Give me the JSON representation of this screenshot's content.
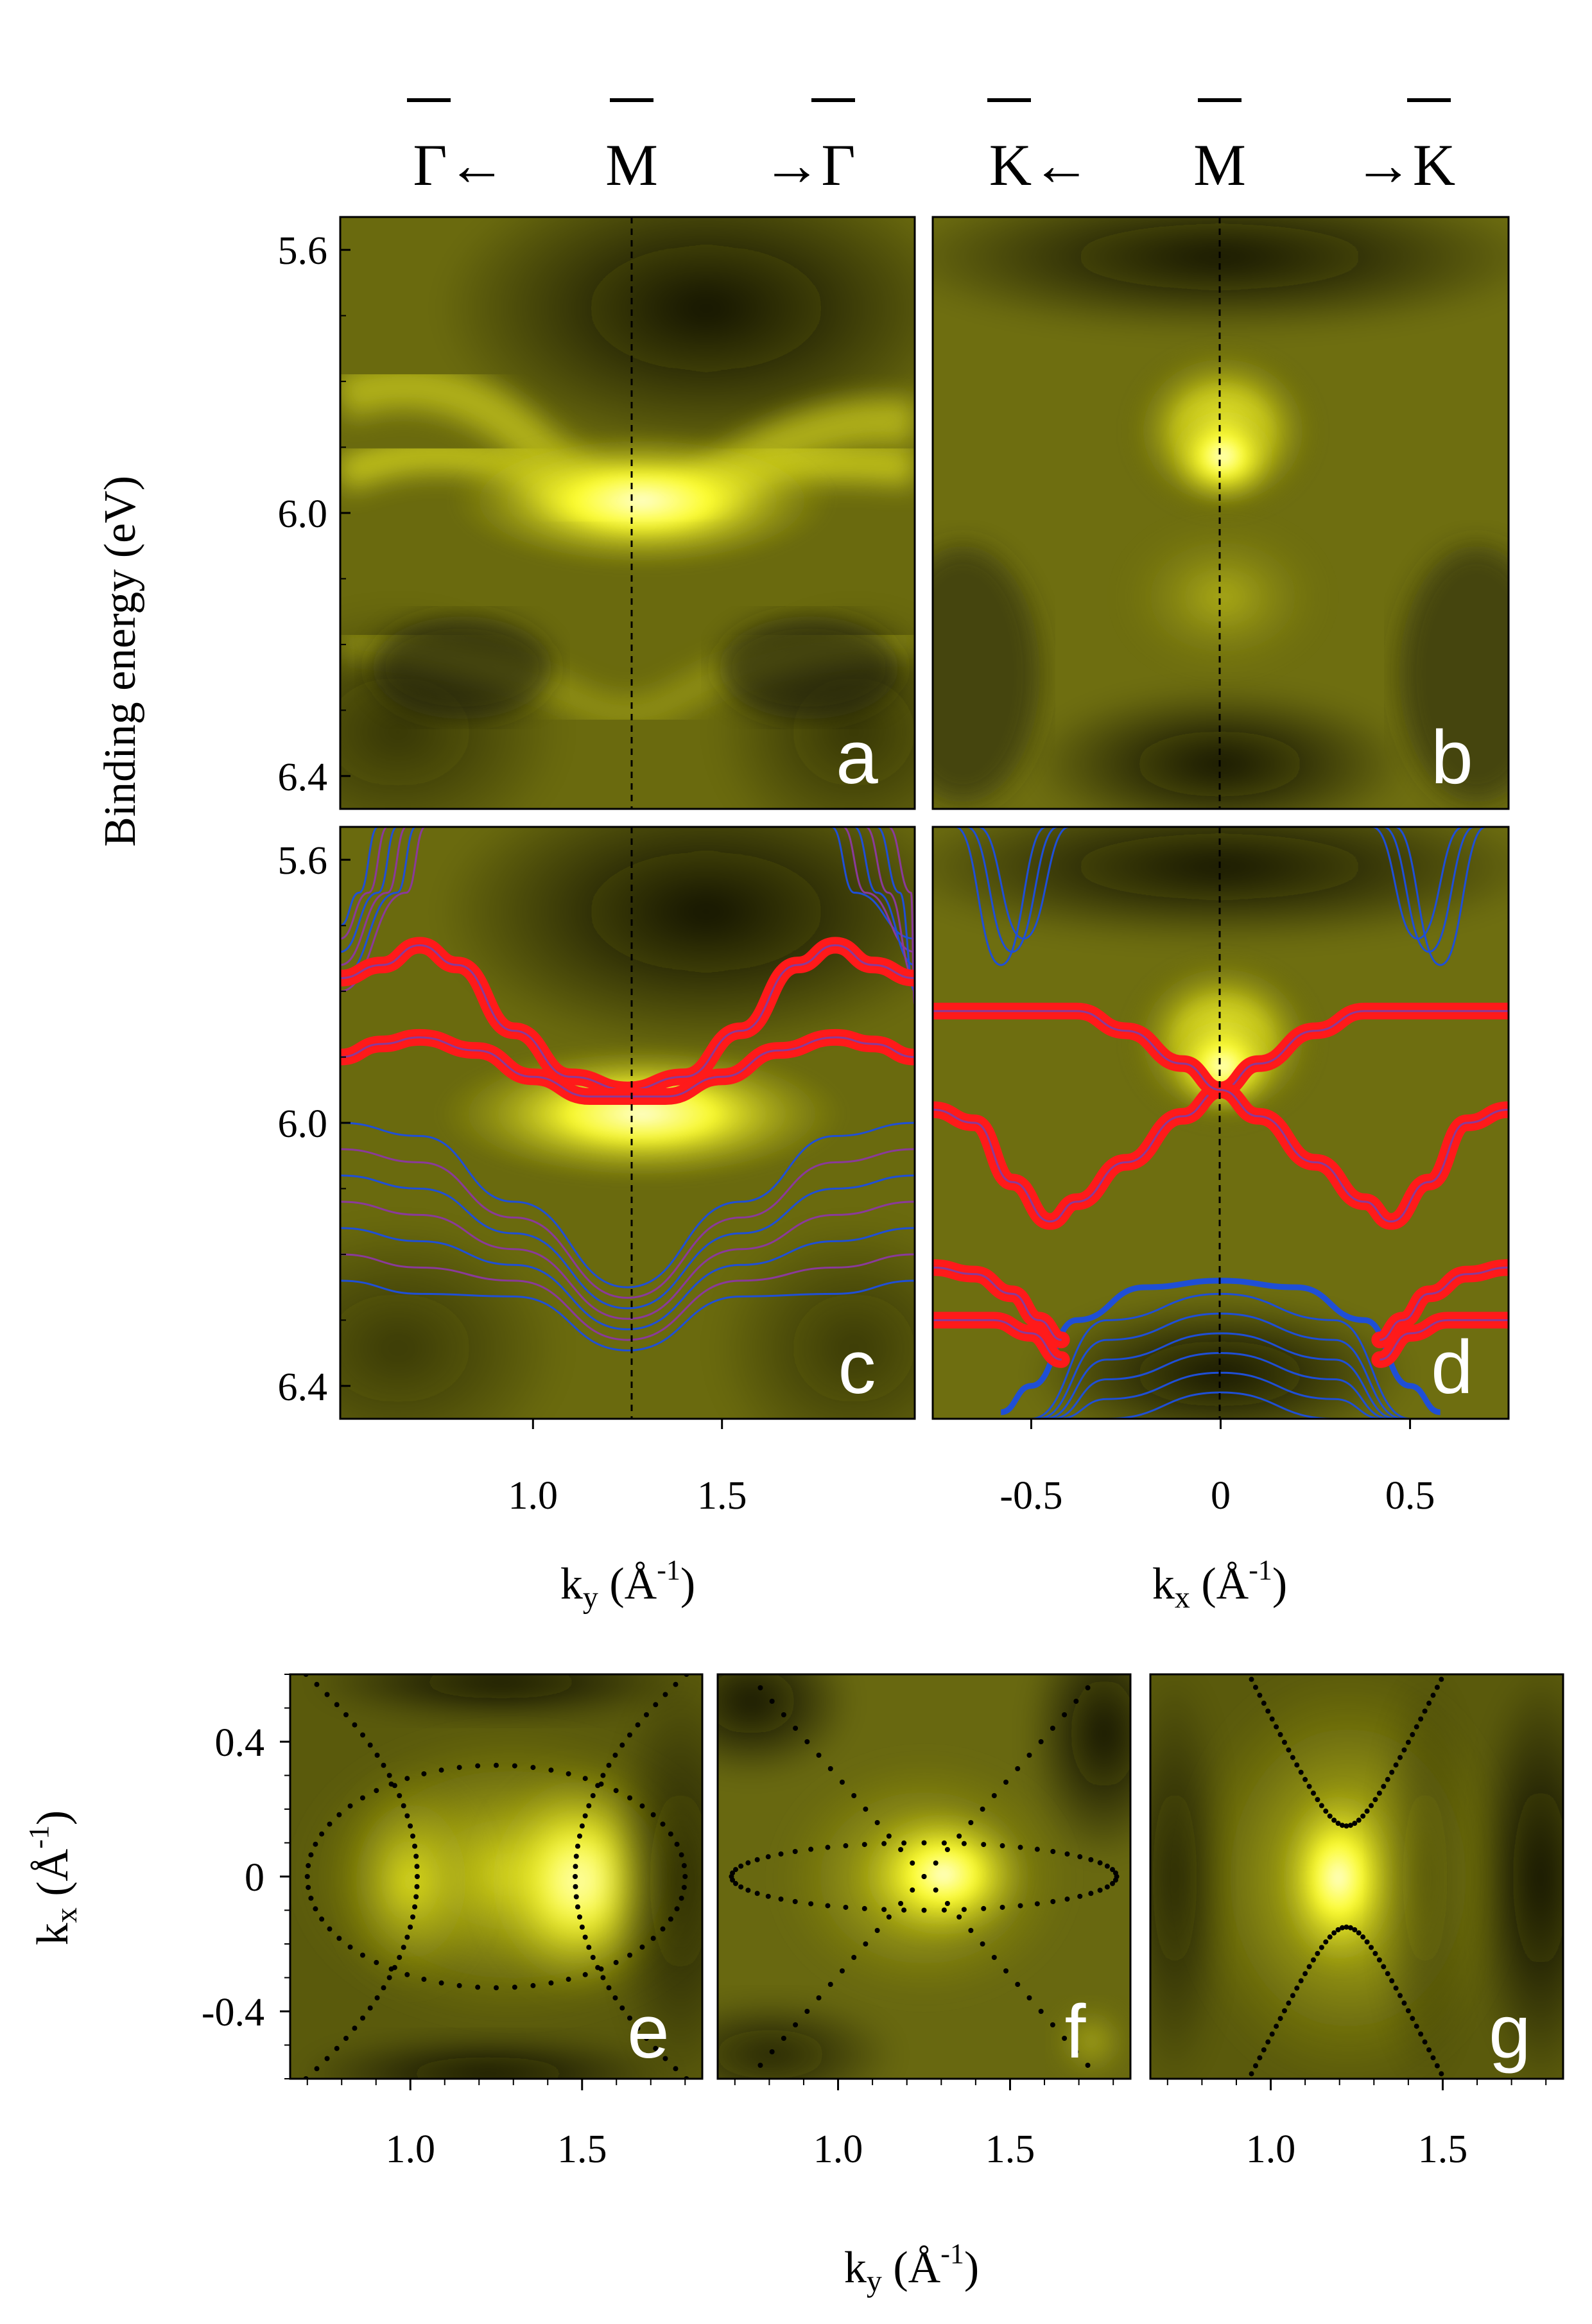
{
  "figure": {
    "y_axis_title_top": "Binding energy (eV)",
    "y_axis_title_bottom_main": "k",
    "y_axis_title_bottom_sub": "x",
    "y_axis_title_bottom_unit": " (Å",
    "y_axis_title_bottom_sup": "-1",
    "y_axis_title_bottom_close": ")",
    "x_axis_title_c_main": "k",
    "x_axis_title_c_sub": "y",
    "x_axis_title_d_main": "k",
    "x_axis_title_d_sub": "x",
    "x_axis_title_bottom_main": "k",
    "x_axis_title_bottom_sub": "y",
    "axis_unit_open": " (Å",
    "axis_unit_sup": "-1",
    "axis_unit_close": ")"
  },
  "high_symmetry": {
    "left": [
      {
        "symbol": "Γ",
        "suffix": "←",
        "prefix": ""
      },
      {
        "symbol": "M",
        "suffix": "",
        "prefix": ""
      },
      {
        "symbol": "Γ",
        "suffix": "",
        "prefix": "→"
      }
    ],
    "right": [
      {
        "symbol": "K",
        "suffix": "←",
        "prefix": ""
      },
      {
        "symbol": "M",
        "suffix": "",
        "prefix": ""
      },
      {
        "symbol": "K",
        "suffix": "",
        "prefix": "→"
      }
    ]
  },
  "colors": {
    "background": "#ffffff",
    "intensity_dark": "#14140a",
    "intensity_mid": "#6e6e0c",
    "intensity_bright": "#ffff2a",
    "intensity_peak": "#ffffc8",
    "band_red": "#ff1a1a",
    "band_blue": "#1f4fd6",
    "band_purple": "#8a3a9a",
    "dashed_line": "#000000",
    "contour_dots": "#000000",
    "panel_label": "#ffffff"
  },
  "chart_data": [
    {
      "panel": "a",
      "type": "heatmap",
      "label": "a",
      "description_axis": "ky",
      "xlim": [
        0.49,
        2.01
      ],
      "ylim": [
        5.55,
        6.45
      ],
      "y_ticks": [
        "5.6",
        "6.0",
        "6.4"
      ],
      "y_tick_values": [
        5.6,
        6.0,
        6.4
      ],
      "x_ticks": [],
      "dashed_vertical_at": 1.25,
      "bands_bright": [
        {
          "name": "upper",
          "points": [
            [
              0.5,
              5.82
            ],
            [
              0.75,
              5.8
            ],
            [
              1.0,
              5.92
            ],
            [
              1.25,
              5.99
            ],
            [
              1.5,
              5.92
            ],
            [
              1.75,
              5.8
            ],
            [
              2.0,
              5.82
            ]
          ]
        },
        {
          "name": "lower",
          "points": [
            [
              0.5,
              5.9
            ],
            [
              0.75,
              5.88
            ],
            [
              1.0,
              5.95
            ],
            [
              1.25,
              5.99
            ],
            [
              1.5,
              5.95
            ],
            [
              1.75,
              5.88
            ],
            [
              2.0,
              5.9
            ]
          ]
        },
        {
          "name": "deep",
          "points": [
            [
              0.5,
              6.1
            ],
            [
              0.8,
              6.15
            ],
            [
              1.1,
              6.28
            ],
            [
              1.25,
              6.3
            ],
            [
              1.4,
              6.28
            ],
            [
              1.7,
              6.15
            ],
            [
              2.0,
              6.1
            ]
          ]
        }
      ]
    },
    {
      "panel": "b",
      "type": "heatmap",
      "label": "b",
      "description_axis": "kx",
      "xlim": [
        -0.76,
        0.76
      ],
      "ylim": [
        5.55,
        6.45
      ],
      "y_ticks": [],
      "x_ticks": [],
      "dashed_vertical_at": 0,
      "bright_spot": {
        "kx": 0,
        "E": 5.92
      }
    },
    {
      "panel": "c",
      "type": "line",
      "label": "c",
      "xlim": [
        0.49,
        2.01
      ],
      "ylim": [
        5.55,
        6.45
      ],
      "x_ticks": [
        "1.0",
        "1.5"
      ],
      "x_tick_values": [
        1.0,
        1.5
      ],
      "y_ticks": [
        "5.6",
        "6.0",
        "6.4"
      ],
      "y_tick_values": [
        5.6,
        6.0,
        6.4
      ],
      "xlabel": "ky (Å-1)",
      "dashed_vertical_at": 1.25,
      "series": [
        {
          "name": "red-upper",
          "color": "red",
          "points": [
            [
              0.49,
              5.78
            ],
            [
              0.6,
              5.76
            ],
            [
              0.7,
              5.73
            ],
            [
              0.8,
              5.76
            ],
            [
              0.95,
              5.86
            ],
            [
              1.1,
              5.93
            ],
            [
              1.25,
              5.95
            ],
            [
              1.4,
              5.93
            ],
            [
              1.55,
              5.86
            ],
            [
              1.7,
              5.76
            ],
            [
              1.8,
              5.73
            ],
            [
              1.9,
              5.76
            ],
            [
              2.01,
              5.78
            ]
          ]
        },
        {
          "name": "red-lower",
          "color": "red",
          "points": [
            [
              0.49,
              5.9
            ],
            [
              0.6,
              5.88
            ],
            [
              0.7,
              5.87
            ],
            [
              0.85,
              5.89
            ],
            [
              1.0,
              5.93
            ],
            [
              1.15,
              5.96
            ],
            [
              1.25,
              5.96
            ],
            [
              1.35,
              5.96
            ],
            [
              1.5,
              5.93
            ],
            [
              1.65,
              5.89
            ],
            [
              1.8,
              5.87
            ],
            [
              1.9,
              5.88
            ],
            [
              2.01,
              5.9
            ]
          ]
        }
      ]
    },
    {
      "panel": "d",
      "type": "line",
      "label": "d",
      "xlim": [
        -0.76,
        0.76
      ],
      "ylim": [
        5.55,
        6.45
      ],
      "x_ticks": [
        "-0.5",
        "0",
        "0.5"
      ],
      "x_tick_values": [
        -0.5,
        0,
        0.5
      ],
      "y_ticks": [],
      "xlabel": "kx (Å-1)",
      "dashed_vertical_at": 0,
      "series": [
        {
          "name": "red-cross-1",
          "color": "red",
          "points": [
            [
              -0.76,
              5.98
            ],
            [
              -0.65,
              6.0
            ],
            [
              -0.55,
              6.09
            ],
            [
              -0.45,
              6.15
            ],
            [
              -0.38,
              6.12
            ],
            [
              -0.25,
              6.06
            ],
            [
              -0.1,
              5.99
            ],
            [
              0,
              5.95
            ],
            [
              0.1,
              5.91
            ],
            [
              0.25,
              5.86
            ],
            [
              0.38,
              5.83
            ],
            [
              0.5,
              5.83
            ],
            [
              0.65,
              5.83
            ],
            [
              0.76,
              5.83
            ]
          ]
        },
        {
          "name": "red-cross-2",
          "color": "red",
          "points": [
            [
              -0.76,
              5.83
            ],
            [
              -0.65,
              5.83
            ],
            [
              -0.5,
              5.83
            ],
            [
              -0.38,
              5.83
            ],
            [
              -0.25,
              5.86
            ],
            [
              -0.1,
              5.91
            ],
            [
              0,
              5.95
            ],
            [
              0.1,
              5.99
            ],
            [
              0.25,
              6.06
            ],
            [
              0.38,
              6.12
            ],
            [
              0.45,
              6.15
            ],
            [
              0.55,
              6.09
            ],
            [
              0.65,
              6.0
            ],
            [
              0.76,
              5.98
            ]
          ]
        },
        {
          "name": "red-lower-left",
          "color": "red",
          "points": [
            [
              -0.76,
              6.22
            ],
            [
              -0.65,
              6.23
            ],
            [
              -0.55,
              6.26
            ],
            [
              -0.48,
              6.3
            ],
            [
              -0.42,
              6.33
            ]
          ]
        },
        {
          "name": "red-lower-right",
          "color": "red",
          "points": [
            [
              0.42,
              6.33
            ],
            [
              0.48,
              6.3
            ],
            [
              0.55,
              6.26
            ],
            [
              0.65,
              6.23
            ],
            [
              0.76,
              6.22
            ]
          ]
        },
        {
          "name": "red-bottom-left",
          "color": "red",
          "points": [
            [
              -0.76,
              6.3
            ],
            [
              -0.6,
              6.3
            ],
            [
              -0.5,
              6.32
            ],
            [
              -0.42,
              6.36
            ]
          ]
        },
        {
          "name": "red-bottom-right",
          "color": "red",
          "points": [
            [
              0.42,
              6.36
            ],
            [
              0.5,
              6.32
            ],
            [
              0.6,
              6.3
            ],
            [
              0.76,
              6.3
            ]
          ]
        },
        {
          "name": "blue-dome",
          "color": "blue",
          "points": [
            [
              -0.58,
              6.44
            ],
            [
              -0.5,
              6.4
            ],
            [
              -0.38,
              6.3
            ],
            [
              -0.2,
              6.25
            ],
            [
              0,
              6.24
            ],
            [
              0.2,
              6.25
            ],
            [
              0.38,
              6.3
            ],
            [
              0.5,
              6.4
            ],
            [
              0.58,
              6.44
            ]
          ]
        }
      ]
    },
    {
      "panel": "e",
      "type": "heatmap",
      "label": "e",
      "xlim": [
        0.65,
        1.85
      ],
      "ylim": [
        -0.6,
        0.6
      ],
      "x_ticks": [
        "1.0",
        "1.5"
      ],
      "x_tick_values": [
        1.0,
        1.5
      ],
      "y_ticks": [
        "0.4",
        "0",
        "-0.4"
      ],
      "y_tick_values": [
        0.4,
        0,
        -0.4
      ],
      "contours": [
        "ellipse centered at (1.25, 0) with semi-axes 0.55 x 0.33",
        "two hyperbola arcs opening left/right"
      ]
    },
    {
      "panel": "f",
      "type": "heatmap",
      "label": "f",
      "xlim": [
        0.65,
        1.85
      ],
      "ylim": [
        -0.6,
        0.6
      ],
      "x_ticks": [
        "1.0",
        "1.5"
      ],
      "x_tick_values": [
        1.0,
        1.5
      ],
      "y_ticks": [],
      "contours": [
        "flat ellipse centered at (1.25, 0) with semi-axes 0.56 x 0.1",
        "X-shaped diagonal lines crossing at (1.25, 0)"
      ]
    },
    {
      "panel": "g",
      "type": "heatmap",
      "label": "g",
      "xlim": [
        0.65,
        1.85
      ],
      "ylim": [
        -0.6,
        0.6
      ],
      "x_ticks": [
        "1.0",
        "1.5"
      ],
      "x_tick_values": [
        1.0,
        1.5
      ],
      "y_ticks": [],
      "contours": [
        "hyperbola opening up/down with vertices at (1.22, ±0.15)"
      ]
    }
  ]
}
